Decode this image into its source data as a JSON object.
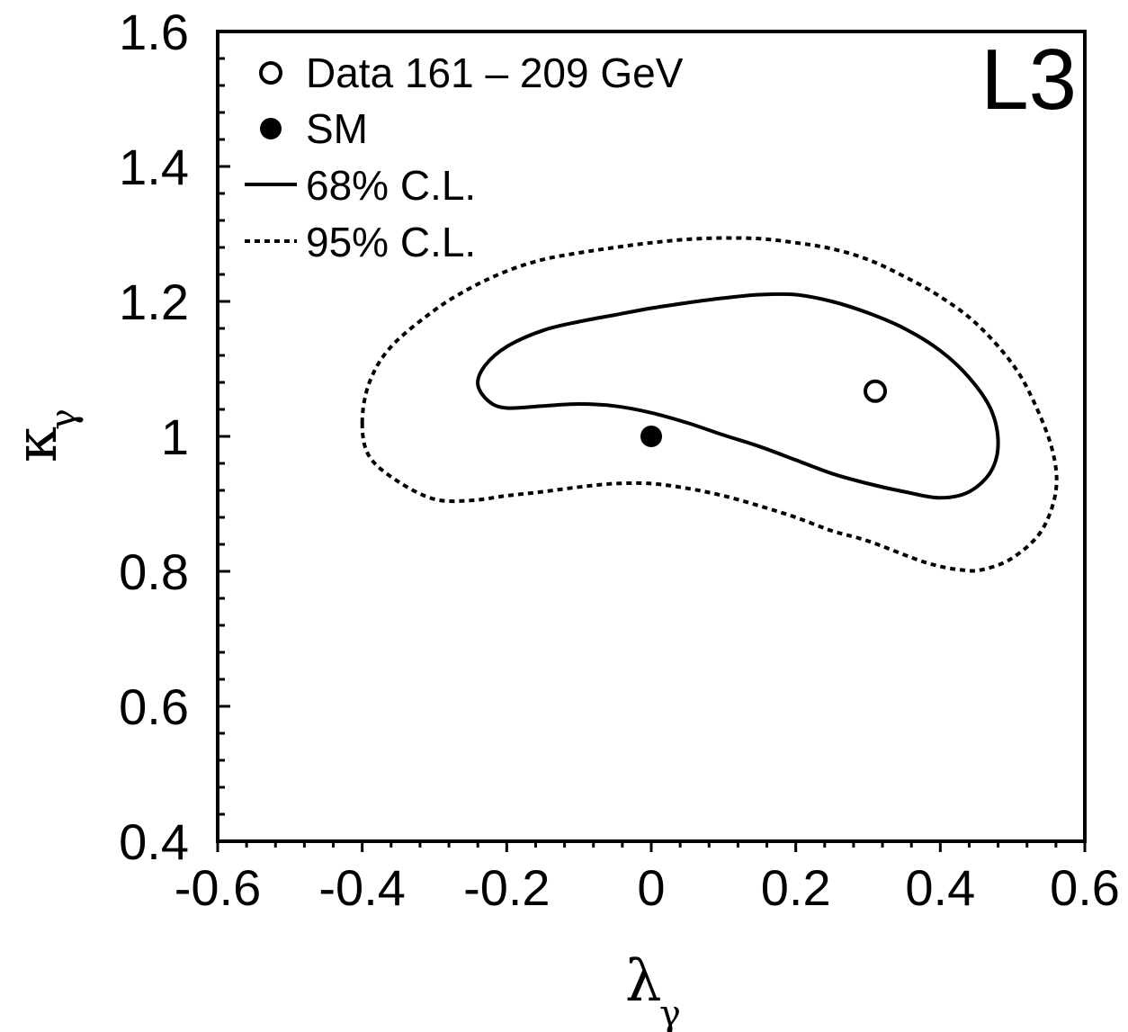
{
  "chart_data": {
    "type": "scatter",
    "corner_label": "L3",
    "xlabel": {
      "symbol": "λ",
      "subscript": "γ"
    },
    "ylabel": {
      "symbol": "κ",
      "subscript": "γ"
    },
    "xlim": [
      -0.6,
      0.6
    ],
    "ylim": [
      0.4,
      1.6
    ],
    "xticks": [
      {
        "value": -0.6,
        "label": "-0.6"
      },
      {
        "value": -0.4,
        "label": "-0.4"
      },
      {
        "value": -0.2,
        "label": "-0.2"
      },
      {
        "value": 0.0,
        "label": "0"
      },
      {
        "value": 0.2,
        "label": "0.2"
      },
      {
        "value": 0.4,
        "label": "0.4"
      },
      {
        "value": 0.6,
        "label": "0.6"
      }
    ],
    "yticks": [
      {
        "value": 0.4,
        "label": "0.4"
      },
      {
        "value": 0.6,
        "label": "0.6"
      },
      {
        "value": 0.8,
        "label": "0.8"
      },
      {
        "value": 1.0,
        "label": "1"
      },
      {
        "value": 1.2,
        "label": "1.2"
      },
      {
        "value": 1.4,
        "label": "1.4"
      },
      {
        "value": 1.6,
        "label": "1.6"
      }
    ],
    "grid": false,
    "legend_position": "top-left",
    "legend": [
      {
        "label": "Data 161 – 209 GeV",
        "marker": "open-circle"
      },
      {
        "label": "SM",
        "marker": "filled-circle"
      },
      {
        "label": "68% C.L.",
        "marker": "solid-line"
      },
      {
        "label": "95% C.L.",
        "marker": "dotted-line"
      }
    ],
    "points": [
      {
        "name": "Data",
        "x": 0.31,
        "y": 1.067,
        "marker": "open-circle"
      },
      {
        "name": "SM",
        "x": 0.0,
        "y": 1.0,
        "marker": "filled-circle"
      }
    ],
    "contours": [
      {
        "name": "68% C.L.",
        "style": "solid",
        "points": [
          [
            -0.24,
            1.077
          ],
          [
            -0.23,
            1.105
          ],
          [
            -0.2,
            1.133
          ],
          [
            -0.15,
            1.157
          ],
          [
            -0.1,
            1.17
          ],
          [
            -0.05,
            1.18
          ],
          [
            0.0,
            1.19
          ],
          [
            0.05,
            1.198
          ],
          [
            0.1,
            1.205
          ],
          [
            0.15,
            1.21
          ],
          [
            0.2,
            1.21
          ],
          [
            0.25,
            1.2
          ],
          [
            0.3,
            1.183
          ],
          [
            0.35,
            1.16
          ],
          [
            0.4,
            1.127
          ],
          [
            0.44,
            1.087
          ],
          [
            0.47,
            1.04
          ],
          [
            0.48,
            0.99
          ],
          [
            0.47,
            0.948
          ],
          [
            0.44,
            0.918
          ],
          [
            0.4,
            0.909
          ],
          [
            0.35,
            0.918
          ],
          [
            0.3,
            0.93
          ],
          [
            0.25,
            0.945
          ],
          [
            0.2,
            0.965
          ],
          [
            0.15,
            0.985
          ],
          [
            0.1,
            1.002
          ],
          [
            0.05,
            1.02
          ],
          [
            0.0,
            1.035
          ],
          [
            -0.05,
            1.045
          ],
          [
            -0.1,
            1.048
          ],
          [
            -0.15,
            1.045
          ],
          [
            -0.2,
            1.042
          ],
          [
            -0.225,
            1.052
          ],
          [
            -0.24,
            1.077
          ]
        ]
      },
      {
        "name": "95% C.L.",
        "style": "dotted",
        "points": [
          [
            -0.4,
            1.02
          ],
          [
            -0.39,
            1.08
          ],
          [
            -0.36,
            1.133
          ],
          [
            -0.3,
            1.187
          ],
          [
            -0.25,
            1.22
          ],
          [
            -0.2,
            1.245
          ],
          [
            -0.15,
            1.262
          ],
          [
            -0.1,
            1.272
          ],
          [
            -0.05,
            1.28
          ],
          [
            0.0,
            1.287
          ],
          [
            0.05,
            1.292
          ],
          [
            0.1,
            1.294
          ],
          [
            0.15,
            1.293
          ],
          [
            0.2,
            1.287
          ],
          [
            0.25,
            1.278
          ],
          [
            0.3,
            1.262
          ],
          [
            0.35,
            1.237
          ],
          [
            0.4,
            1.207
          ],
          [
            0.45,
            1.167
          ],
          [
            0.5,
            1.107
          ],
          [
            0.53,
            1.05
          ],
          [
            0.555,
            0.98
          ],
          [
            0.56,
            0.92
          ],
          [
            0.54,
            0.86
          ],
          [
            0.5,
            0.82
          ],
          [
            0.46,
            0.803
          ],
          [
            0.43,
            0.802
          ],
          [
            0.38,
            0.813
          ],
          [
            0.3,
            0.845
          ],
          [
            0.25,
            0.86
          ],
          [
            0.2,
            0.88
          ],
          [
            0.15,
            0.897
          ],
          [
            0.1,
            0.912
          ],
          [
            0.05,
            0.923
          ],
          [
            0.0,
            0.93
          ],
          [
            -0.05,
            0.93
          ],
          [
            -0.1,
            0.925
          ],
          [
            -0.15,
            0.918
          ],
          [
            -0.2,
            0.912
          ],
          [
            -0.25,
            0.905
          ],
          [
            -0.3,
            0.907
          ],
          [
            -0.35,
            0.933
          ],
          [
            -0.39,
            0.97
          ],
          [
            -0.4,
            1.02
          ]
        ]
      }
    ]
  }
}
